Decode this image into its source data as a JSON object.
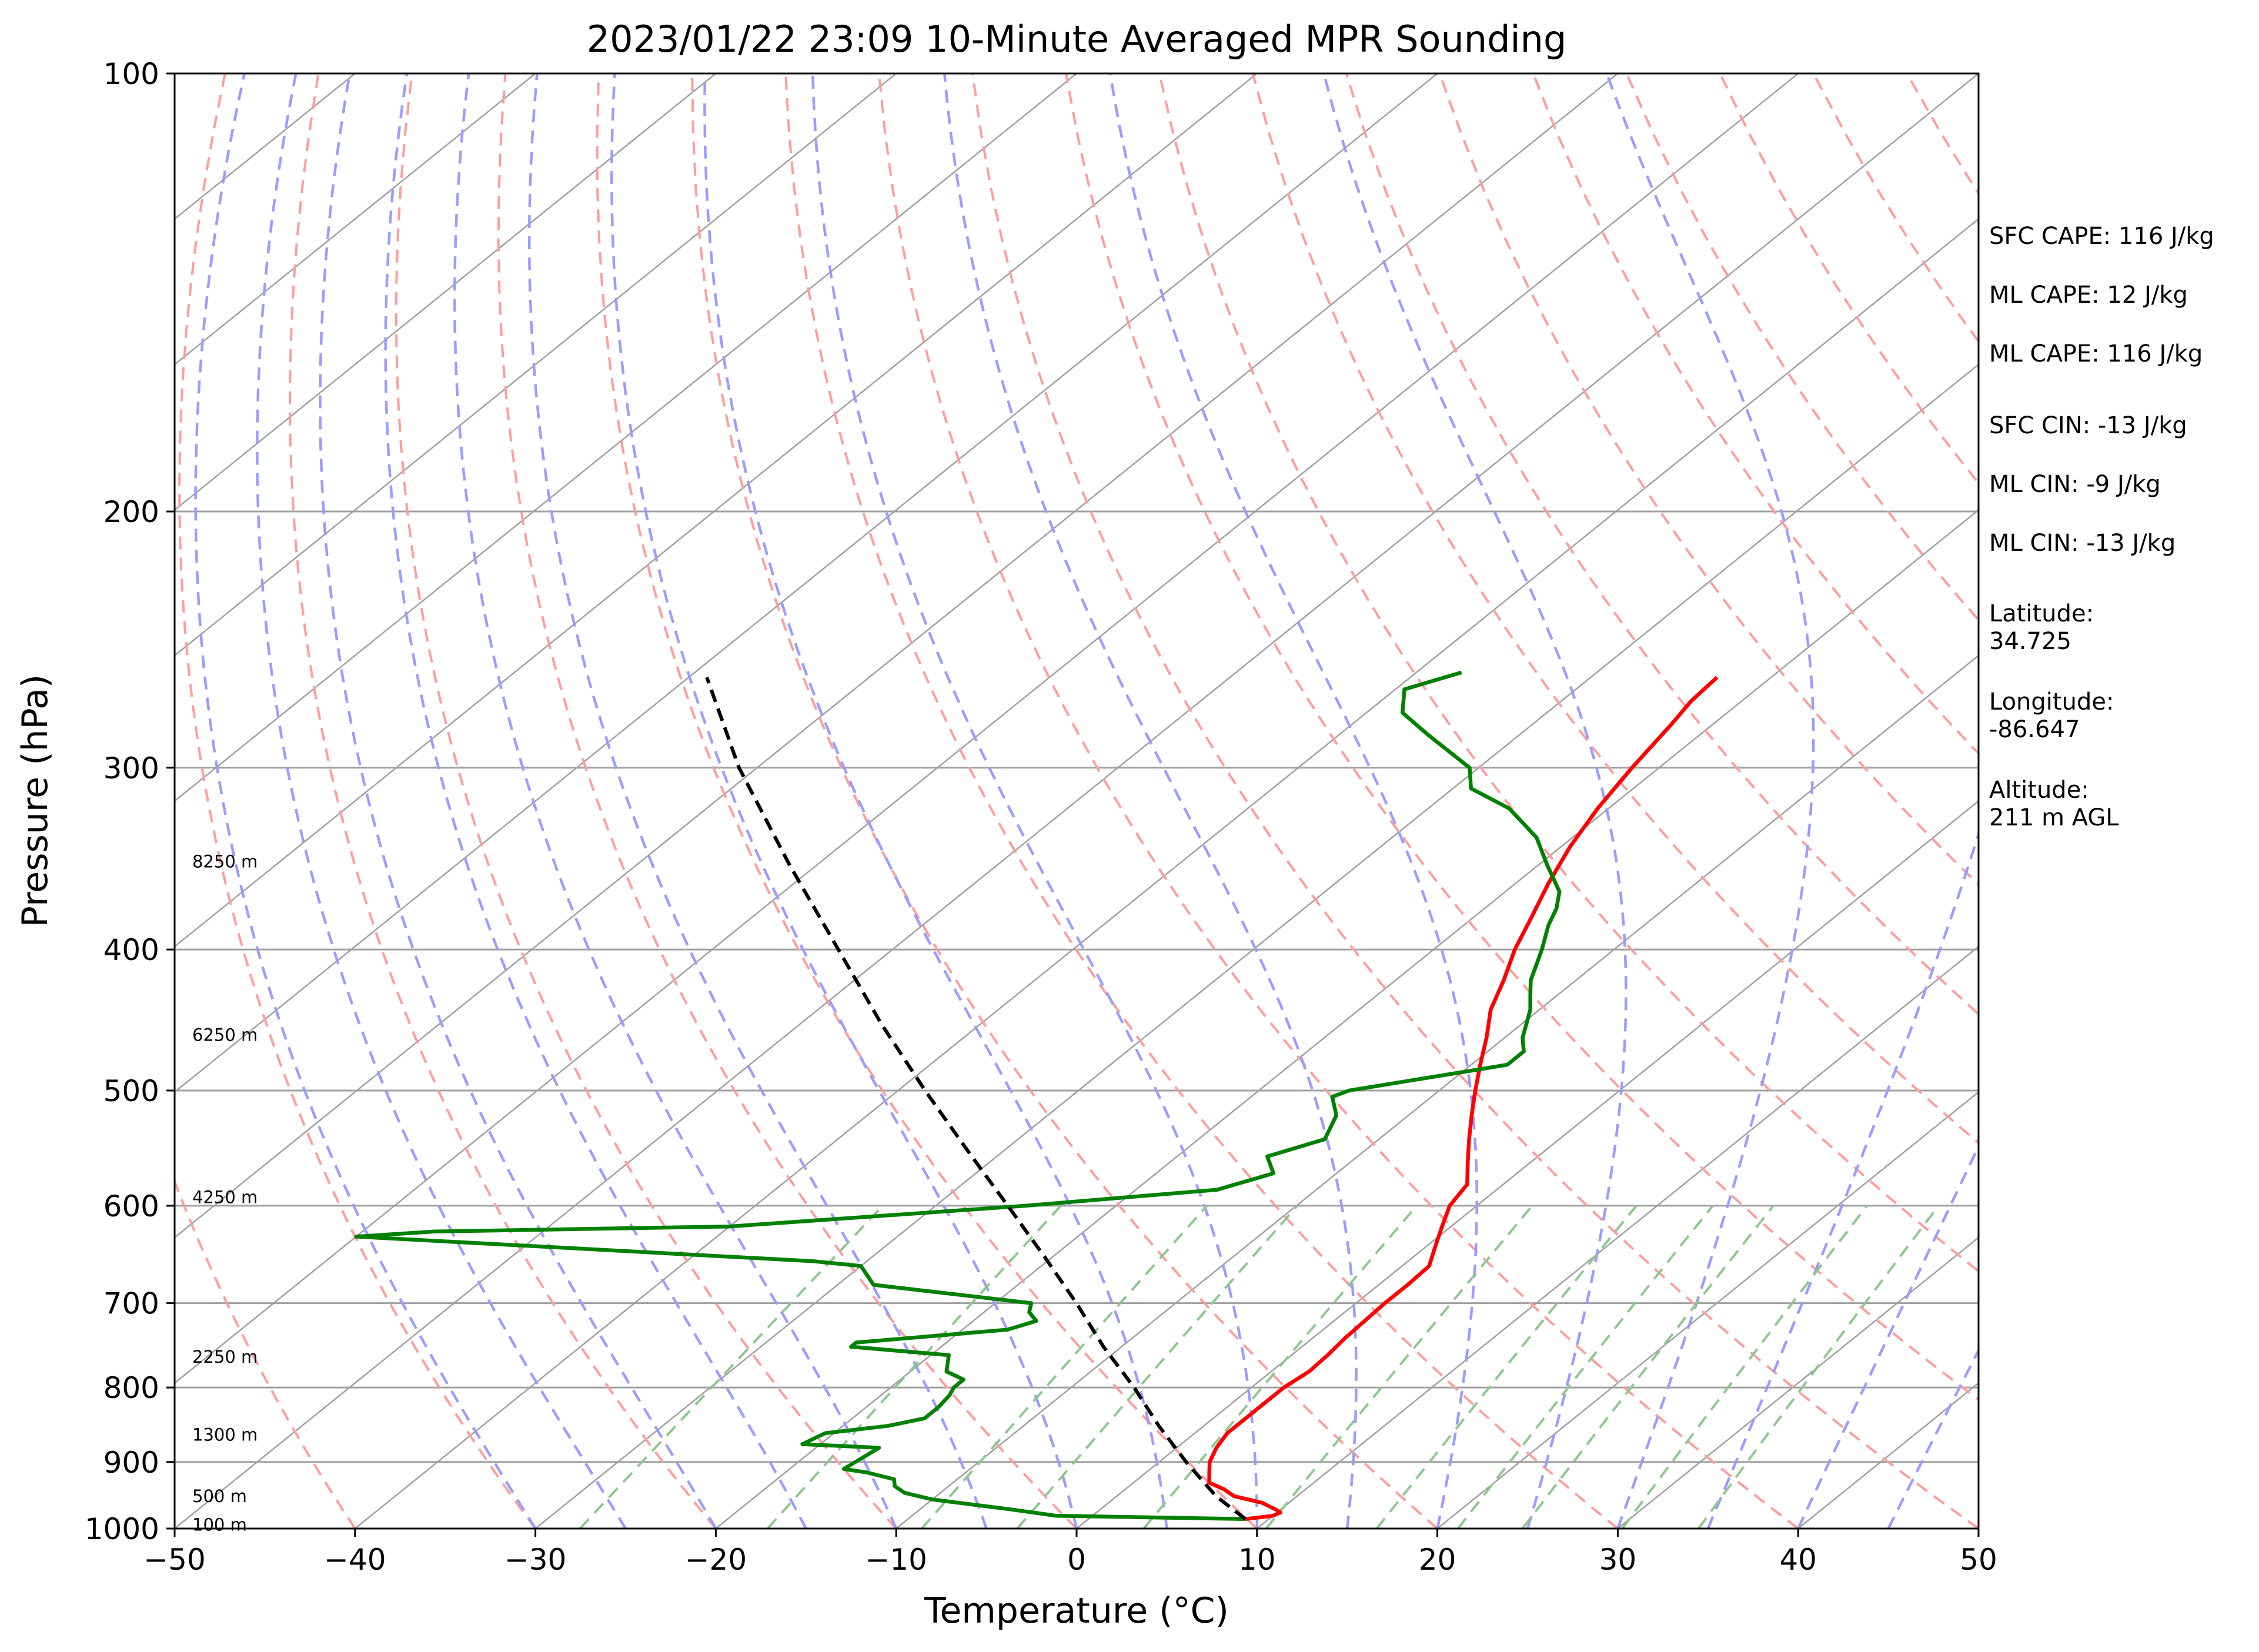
{
  "chart_data": {
    "type": "line",
    "subtype": "skew-t log-p diagram",
    "title": "2023/01/22 23:09 10-Minute Averaged MPR Sounding",
    "xlabel": "Temperature (°C)",
    "ylabel": "Pressure (hPa)",
    "xlim": [
      -50,
      50
    ],
    "ylim": [
      1000,
      100
    ],
    "y_scale": "log",
    "x_ticks": [
      "−50",
      "−40",
      "−30",
      "−20",
      "−10",
      "0",
      "10",
      "20",
      "30",
      "40",
      "50"
    ],
    "y_ticks": [
      "100",
      "200",
      "300",
      "400",
      "500",
      "600",
      "700",
      "800",
      "900",
      "1000"
    ],
    "grid": true,
    "reference_lines": {
      "isotherms": "gray solid, skewed",
      "dry_adiabats": "red dashed",
      "moist_adiabats": "blue dashed",
      "mixing_ratio": "green dashed"
    },
    "series": [
      {
        "series_key": "temperature",
        "color": "#ff0000",
        "style": "solid",
        "points": [
          [
            985,
            8.7
          ],
          [
            980,
            10.0
          ],
          [
            975,
            10.2
          ],
          [
            970,
            9.7
          ],
          [
            960,
            8.5
          ],
          [
            950,
            6.5
          ],
          [
            940,
            5.5
          ],
          [
            930,
            4.2
          ],
          [
            915,
            3.5
          ],
          [
            900,
            2.8
          ],
          [
            880,
            2.2
          ],
          [
            860,
            1.8
          ],
          [
            850,
            1.8
          ],
          [
            840,
            1.8
          ],
          [
            820,
            1.8
          ],
          [
            800,
            1.8
          ],
          [
            780,
            2.1
          ],
          [
            760,
            2.0
          ],
          [
            740,
            1.8
          ],
          [
            720,
            1.7
          ],
          [
            700,
            1.6
          ],
          [
            680,
            1.6
          ],
          [
            660,
            1.5
          ],
          [
            640,
            0.5
          ],
          [
            620,
            -0.5
          ],
          [
            600,
            -1.5
          ],
          [
            580,
            -2.0
          ],
          [
            560,
            -3.5
          ],
          [
            540,
            -5.0
          ],
          [
            520,
            -6.5
          ],
          [
            500,
            -8.0
          ],
          [
            480,
            -9.5
          ],
          [
            460,
            -11.0
          ],
          [
            440,
            -12.7
          ],
          [
            420,
            -14.0
          ],
          [
            400,
            -15.5
          ],
          [
            380,
            -16.8
          ],
          [
            360,
            -18.2
          ],
          [
            340,
            -19.5
          ],
          [
            320,
            -20.6
          ],
          [
            300,
            -21.5
          ],
          [
            280,
            -22.3
          ],
          [
            270,
            -22.8
          ],
          [
            260,
            -23.0
          ]
        ]
      },
      {
        "series_key": "dewpoint",
        "color": "#008000",
        "style": "solid",
        "points": [
          [
            985,
            8.7
          ],
          [
            980,
            -2.0
          ],
          [
            970,
            -5.0
          ],
          [
            955,
            -10.0
          ],
          [
            945,
            -12.0
          ],
          [
            935,
            -13.0
          ],
          [
            925,
            -13.5
          ],
          [
            915,
            -15.5
          ],
          [
            910,
            -17.0
          ],
          [
            880,
            -16.5
          ],
          [
            875,
            -21.0
          ],
          [
            860,
            -20.5
          ],
          [
            850,
            -17.5
          ],
          [
            840,
            -16.0
          ],
          [
            825,
            -16.0
          ],
          [
            810,
            -16.2
          ],
          [
            800,
            -16.5
          ],
          [
            790,
            -16.5
          ],
          [
            780,
            -18.0
          ],
          [
            760,
            -19.0
          ],
          [
            750,
            -25.0
          ],
          [
            745,
            -25.0
          ],
          [
            730,
            -17.5
          ],
          [
            720,
            -16.5
          ],
          [
            710,
            -17.5
          ],
          [
            700,
            -18.0
          ],
          [
            680,
            -28.0
          ],
          [
            660,
            -30.0
          ],
          [
            655,
            -33.0
          ],
          [
            630,
            -60.0
          ],
          [
            625,
            -56.0
          ],
          [
            620,
            -40.0
          ],
          [
            600,
            -25.0
          ],
          [
            585,
            -15.5
          ],
          [
            570,
            -13.5
          ],
          [
            555,
            -15.0
          ],
          [
            540,
            -13.0
          ],
          [
            520,
            -14.0
          ],
          [
            505,
            -15.5
          ],
          [
            500,
            -15.0
          ],
          [
            480,
            -8.0
          ],
          [
            470,
            -8.0
          ],
          [
            460,
            -9.0
          ],
          [
            440,
            -10.5
          ],
          [
            430,
            -11.5
          ],
          [
            420,
            -12.5
          ],
          [
            400,
            -14.0
          ],
          [
            385,
            -15.3
          ],
          [
            375,
            -16.0
          ],
          [
            365,
            -17.0
          ],
          [
            350,
            -19.5
          ],
          [
            335,
            -22.0
          ],
          [
            320,
            -25.5
          ],
          [
            310,
            -29.0
          ],
          [
            300,
            -30.5
          ],
          [
            285,
            -35.0
          ],
          [
            275,
            -38.0
          ],
          [
            265,
            -39.5
          ],
          [
            258,
            -37.5
          ]
        ]
      },
      {
        "series_key": "parcel",
        "color": "#000000",
        "style": "dashed",
        "points": [
          [
            985,
            8.7
          ],
          [
            950,
            5.5
          ],
          [
            900,
            1.5
          ],
          [
            850,
            -2.5
          ],
          [
            800,
            -6.5
          ],
          [
            750,
            -11.0
          ],
          [
            700,
            -15.5
          ],
          [
            650,
            -20.5
          ],
          [
            600,
            -26.0
          ],
          [
            550,
            -32.0
          ],
          [
            500,
            -38.5
          ],
          [
            450,
            -45.5
          ],
          [
            400,
            -53.0
          ],
          [
            350,
            -61.5
          ],
          [
            300,
            -71.0
          ],
          [
            260,
            -79.0
          ]
        ]
      }
    ],
    "height_labels": [
      {
        "label": "100 m",
        "p": 994
      },
      {
        "label": "500 m",
        "p": 950
      },
      {
        "label": "1300 m",
        "p": 862
      },
      {
        "label": "2250 m",
        "p": 762
      },
      {
        "label": "4250 m",
        "p": 592
      },
      {
        "label": "6250 m",
        "p": 458
      },
      {
        "label": "8250 m",
        "p": 348
      }
    ]
  },
  "info_panel": {
    "sfc_cape": "SFC CAPE: 116 J/kg",
    "ml_cape_1": "ML CAPE: 12 J/kg",
    "ml_cape_2": "ML CAPE: 116 J/kg",
    "sfc_cin": "SFC CIN: -13 J/kg",
    "ml_cin_1": "ML CIN: -9 J/kg",
    "ml_cin_2": "ML CIN: -13 J/kg",
    "latitude_label": "Latitude:",
    "latitude_value": "34.725",
    "longitude_label": "Longitude:",
    "longitude_value": "-86.647",
    "altitude_label": "Altitude:",
    "altitude_value": "211 m AGL"
  },
  "colors": {
    "temperature": "#ff0000",
    "dewpoint": "#008000",
    "parcel": "#000000",
    "isotherm": "#a0a0a0",
    "dry_adiabat": "#ff9c9c",
    "moist_adiabat": "#9c9cff",
    "mixing_ratio": "#8cc88c"
  }
}
